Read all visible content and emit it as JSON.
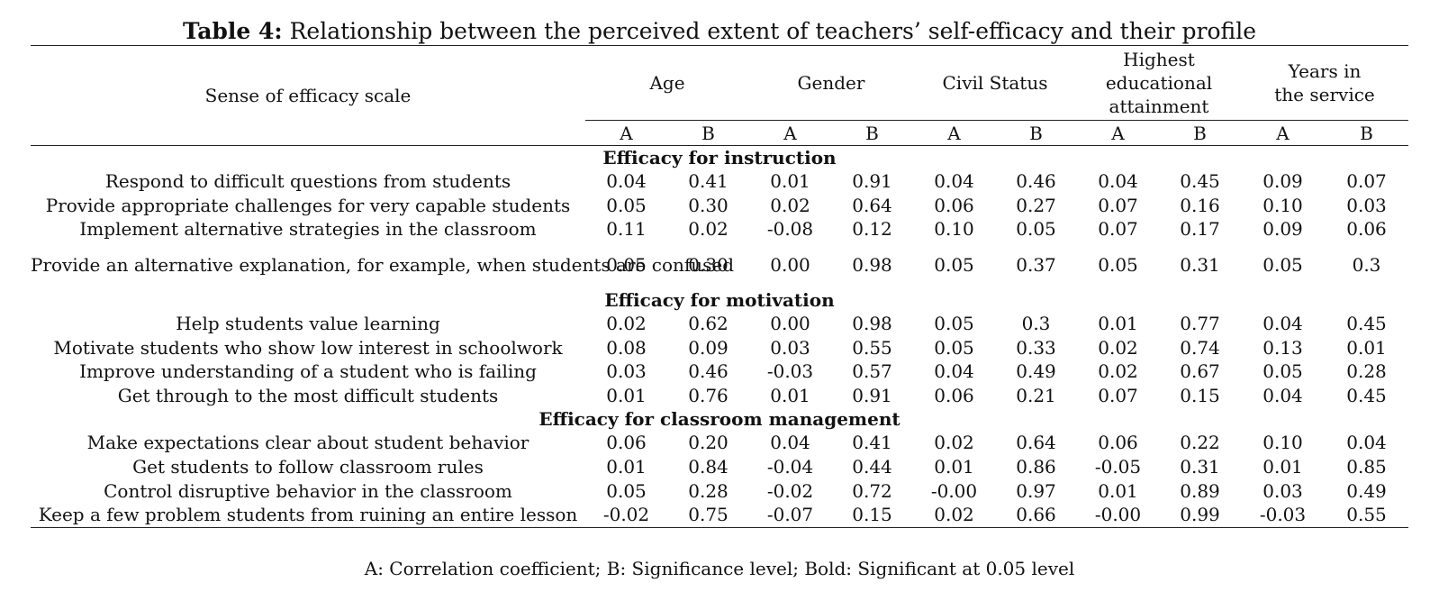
{
  "caption": {
    "label": "Table 4:",
    "text": "Relationship between the perceived extent of teachers’ self-efficacy and their profile"
  },
  "header": {
    "scale_label": "Sense of efficacy scale",
    "groups": [
      {
        "name": "Age"
      },
      {
        "name": "Gender"
      },
      {
        "name": "Civil Status"
      },
      {
        "name": "Highest educational attainment"
      },
      {
        "name": "Years in the service"
      }
    ],
    "sub": [
      "A",
      "B",
      "A",
      "B",
      "A",
      "B",
      "A",
      "B",
      "A",
      "B"
    ]
  },
  "sections": [
    {
      "title": "Efficacy for instruction",
      "rows": [
        {
          "label": "Respond to difficult questions from students",
          "values": [
            "0.04",
            "0.41",
            "0.01",
            "0.91",
            "0.04",
            "0.46",
            "0.04",
            "0.45",
            "0.09",
            "0.07"
          ],
          "bold": []
        },
        {
          "label": "Provide appropriate challenges for very capable students",
          "values": [
            "0.05",
            "0.30",
            "0.02",
            "0.64",
            "0.06",
            "0.27",
            "0.07",
            "0.16",
            "0.10",
            "0.03"
          ],
          "bold": [
            8
          ]
        },
        {
          "label": "Implement alternative strategies in the classroom",
          "values": [
            "0.11",
            "0.02",
            "-0.08",
            "0.12",
            "0.10",
            "0.05",
            "0.07",
            "0.17",
            "0.09",
            "0.06"
          ],
          "bold": [
            0,
            4
          ]
        },
        {
          "label": "Provide an alternative explanation, for example, when students are confused",
          "values": [
            "0.05",
            "0.30",
            "0.00",
            "0.98",
            "0.05",
            "0.37",
            "0.05",
            "0.31",
            "0.05",
            "0.3"
          ],
          "bold": []
        }
      ]
    },
    {
      "title": "Efficacy for motivation",
      "rows": [
        {
          "label": "Help students value learning",
          "values": [
            "0.02",
            "0.62",
            "0.00",
            "0.98",
            "0.05",
            "0.3",
            "0.01",
            "0.77",
            "0.04",
            "0.45"
          ],
          "bold": []
        },
        {
          "label": "Motivate students who show low interest in schoolwork",
          "values": [
            "0.08",
            "0.09",
            "0.03",
            "0.55",
            "0.05",
            "0.33",
            "0.02",
            "0.74",
            "0.13",
            "0.01"
          ],
          "bold": [
            8
          ]
        },
        {
          "label": "Improve understanding of a student who is failing",
          "values": [
            "0.03",
            "0.46",
            "-0.03",
            "0.57",
            "0.04",
            "0.49",
            "0.02",
            "0.67",
            "0.05",
            "0.28"
          ],
          "bold": []
        },
        {
          "label": "Get through to the most difficult students",
          "values": [
            "0.01",
            "0.76",
            "0.01",
            "0.91",
            "0.06",
            "0.21",
            "0.07",
            "0.15",
            "0.04",
            "0.45"
          ],
          "bold": []
        }
      ]
    },
    {
      "title": "Efficacy for classroom management",
      "rows": [
        {
          "label": "Make expectations clear about student behavior",
          "values": [
            "0.06",
            "0.20",
            "0.04",
            "0.41",
            "0.02",
            "0.64",
            "0.06",
            "0.22",
            "0.10",
            "0.04"
          ],
          "bold": [
            8
          ]
        },
        {
          "label": "Get students to follow classroom rules",
          "values": [
            "0.01",
            "0.84",
            "-0.04",
            "0.44",
            "0.01",
            "0.86",
            "-0.05",
            "0.31",
            "0.01",
            "0.85"
          ],
          "bold": []
        },
        {
          "label": "Control disruptive behavior in the classroom",
          "values": [
            "0.05",
            "0.28",
            "-0.02",
            "0.72",
            "-0.00",
            "0.97",
            "0.01",
            "0.89",
            "0.03",
            "0.49"
          ],
          "bold": []
        },
        {
          "label": "Keep a few problem students from ruining an entire lesson",
          "values": [
            "-0.02",
            "0.75",
            "-0.07",
            "0.15",
            "0.02",
            "0.66",
            "-0.00",
            "0.99",
            "-0.03",
            "0.55"
          ],
          "bold": []
        }
      ]
    }
  ],
  "footnote": "A: Correlation coefficient; B: Significance level; Bold: Significant at 0.05 level"
}
